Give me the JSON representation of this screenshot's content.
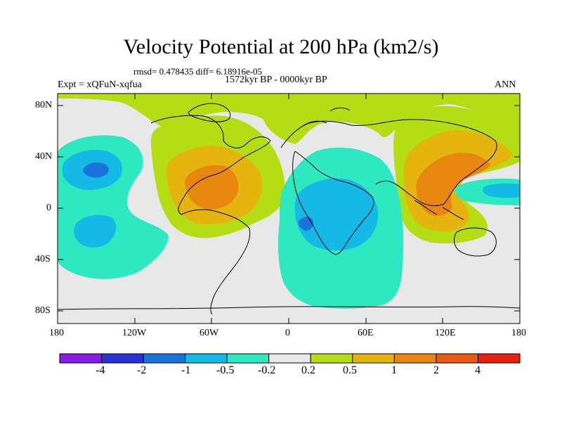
{
  "title": "Velocity Potential at 200 hPa (km2/s)",
  "stats_line": "rmsd= 0.478435  diff= 6.18916e-05",
  "period": "1572kyr BP - 0000kyr BP",
  "experiment": "Expt = xQFuN-xqfua",
  "season": "ANN",
  "lat_labels": [
    "80N",
    "40N",
    "0",
    "40S",
    "80S"
  ],
  "lon_labels": [
    "180",
    "120W",
    "60W",
    "0",
    "60E",
    "120E",
    "180"
  ],
  "colorbar": {
    "labels": [
      "-4",
      "-2",
      "-1",
      "-0.5",
      "-0.2",
      "0.2",
      "0.5",
      "1",
      "2",
      "4"
    ],
    "colors": [
      "#8a1ae6",
      "#2b33d6",
      "#1a73db",
      "#14b9e6",
      "#2ee8c2",
      "#e8e8e8",
      "#b5dd14",
      "#e6b40e",
      "#e8860f",
      "#e85a14",
      "#e8200f"
    ]
  },
  "fields": {
    "background": "#e8e8e8",
    "positive_1": "#b5dd14",
    "positive_2": "#e6b40e",
    "positive_3": "#e8860f",
    "negative_1": "#2ee8c2",
    "negative_2": "#14b9e6",
    "negative_3": "#1a73db"
  }
}
